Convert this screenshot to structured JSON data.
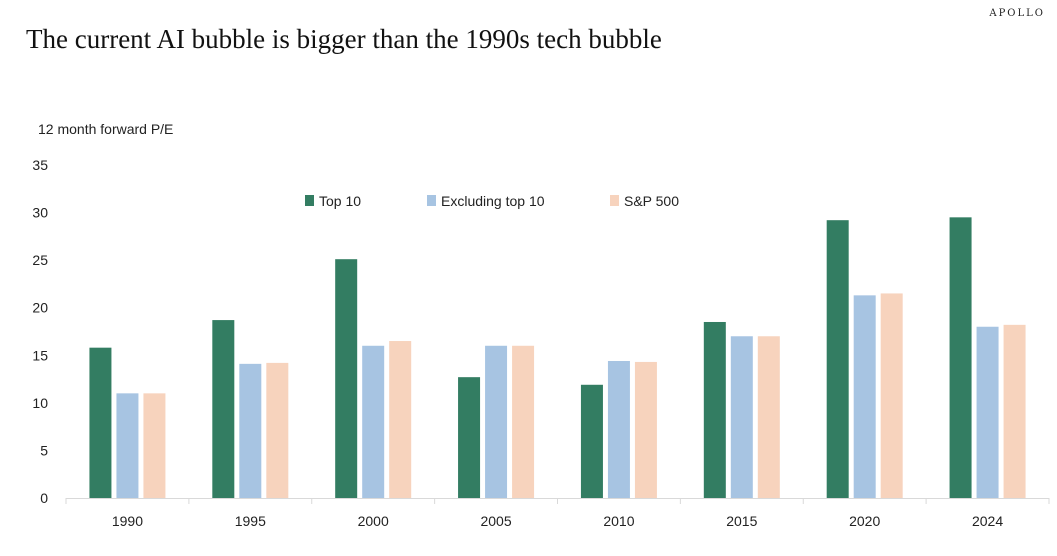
{
  "brand": "APOLLO",
  "title": "The current AI bubble is bigger than the 1990s tech bubble",
  "chart_data": {
    "type": "bar",
    "ylabel": "12 month forward P/E",
    "ylim": [
      0,
      35
    ],
    "yticks": [
      0,
      5,
      10,
      15,
      20,
      25,
      30,
      35
    ],
    "grid": false,
    "legend_position": "top-center",
    "categories": [
      "1990",
      "1995",
      "2000",
      "2005",
      "2010",
      "2015",
      "2020",
      "2024"
    ],
    "series": [
      {
        "name": "Top 10",
        "color": "#337d62",
        "values": [
          15.8,
          18.7,
          25.1,
          12.7,
          11.9,
          18.5,
          29.2,
          29.5
        ]
      },
      {
        "name": "Excluding top 10",
        "color": "#a7c4e2",
        "values": [
          11.0,
          14.1,
          16.0,
          16.0,
          14.4,
          17.0,
          21.3,
          18.0
        ]
      },
      {
        "name": "S&P 500",
        "color": "#f7d3bd",
        "values": [
          11.0,
          14.2,
          16.5,
          16.0,
          14.3,
          17.0,
          21.5,
          18.2
        ]
      }
    ]
  }
}
